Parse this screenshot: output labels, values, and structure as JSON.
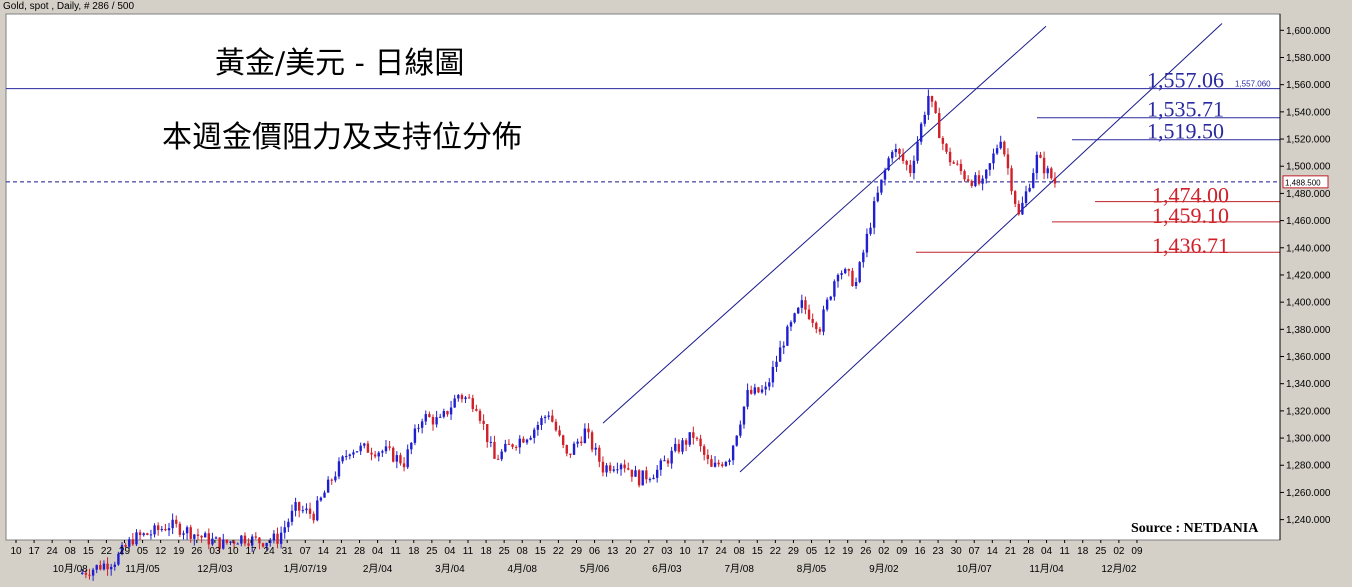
{
  "header": "Gold, spot , Daily, # 286 / 500",
  "source": "Source : NETDANIA",
  "title_lines": [
    "黃金/美元 - 日線圖",
    "本週金價阻力及支持位分佈"
  ],
  "colors": {
    "up": "#1f1fd0",
    "down": "#d0202a",
    "channel": "#1a1a8c",
    "resistance": "#2a2aa0",
    "support": "#c0202a",
    "plot_bg": "#ffffff"
  },
  "current_price_label": "1,488.500",
  "resistance_tag": "1,557.060",
  "chart_data": {
    "type": "candlestick",
    "ylim": [
      1225,
      1612
    ],
    "yticks": [
      {
        "v": 1600,
        "t": "1,600.000"
      },
      {
        "v": 1580,
        "t": "1,580.000"
      },
      {
        "v": 1560,
        "t": "1,560.000"
      },
      {
        "v": 1540,
        "t": "1,540.000"
      },
      {
        "v": 1520,
        "t": "1,520.000"
      },
      {
        "v": 1500,
        "t": "1,500.000"
      },
      {
        "v": 1480,
        "t": "1,480.000"
      },
      {
        "v": 1460,
        "t": "1,460.000"
      },
      {
        "v": 1440,
        "t": "1,440.000"
      },
      {
        "v": 1420,
        "t": "1,420.000"
      },
      {
        "v": 1400,
        "t": "1,400.000"
      },
      {
        "v": 1380,
        "t": "1,380.000"
      },
      {
        "v": 1360,
        "t": "1,360.000"
      },
      {
        "v": 1340,
        "t": "1,340.000"
      },
      {
        "v": 1320,
        "t": "1,320.000"
      },
      {
        "v": 1300,
        "t": "1,300.000"
      },
      {
        "v": 1280,
        "t": "1,280.000"
      },
      {
        "v": 1260,
        "t": "1,260.000"
      },
      {
        "v": 1240,
        "t": "1,240.000"
      }
    ],
    "x_day_labels": [
      "10",
      "17",
      "24",
      "08",
      "15",
      "22",
      "29",
      "05",
      "12",
      "19",
      "26",
      "03",
      "10",
      "17",
      "24",
      "31",
      "07",
      "14",
      "21",
      "28",
      "04",
      "11",
      "18",
      "25",
      "04",
      "11",
      "18",
      "25",
      "08",
      "15",
      "22",
      "29",
      "06",
      "13",
      "20",
      "27",
      "03",
      "10",
      "17",
      "24",
      "08",
      "15",
      "22",
      "29",
      "05",
      "12",
      "19",
      "26",
      "02",
      "09",
      "16",
      "23",
      "30",
      "07",
      "14",
      "21",
      "28",
      "04",
      "11",
      "18",
      "25",
      "02",
      "09"
    ],
    "x_month_labels": [
      {
        "i": 3,
        "t": "10月/08"
      },
      {
        "i": 7,
        "t": "11月/05"
      },
      {
        "i": 11,
        "t": "12月/03"
      },
      {
        "i": 16,
        "t": "1月/07/19"
      },
      {
        "i": 20,
        "t": "2月/04"
      },
      {
        "i": 24,
        "t": "3月/04"
      },
      {
        "i": 28,
        "t": "4月/08"
      },
      {
        "i": 32,
        "t": "5月/06"
      },
      {
        "i": 36,
        "t": "6月/03"
      },
      {
        "i": 40,
        "t": "7月/08"
      },
      {
        "i": 44,
        "t": "8月/05"
      },
      {
        "i": 48,
        "t": "9月/02"
      },
      {
        "i": 53,
        "t": "10月/07"
      },
      {
        "i": 57,
        "t": "11月/04"
      },
      {
        "i": 61,
        "t": "12月/02"
      }
    ],
    "weekly_closes": [
      1200,
      1205,
      1210,
      1226,
      1230,
      1236,
      1232,
      1226,
      1222,
      1227,
      1224,
      1226,
      1248,
      1244,
      1270,
      1292,
      1292,
      1290,
      1282,
      1316,
      1312,
      1332,
      1325,
      1284,
      1296,
      1304,
      1319,
      1286,
      1305,
      1278,
      1283,
      1270,
      1276,
      1291,
      1302,
      1277,
      1287,
      1332,
      1335,
      1372,
      1398,
      1382,
      1425,
      1414,
      1470,
      1514,
      1497,
      1552,
      1508,
      1493,
      1486,
      1522,
      1463,
      1506,
      1488
    ],
    "levels": [
      {
        "value": 1557.06,
        "label": "1,557.06",
        "kind": "resistance"
      },
      {
        "value": 1535.71,
        "label": "1,535.71",
        "kind": "resistance"
      },
      {
        "value": 1519.5,
        "label": "1,519.50",
        "kind": "resistance"
      },
      {
        "value": 1474.0,
        "label": "1,474.00",
        "kind": "support"
      },
      {
        "value": 1459.1,
        "label": "1,459.10",
        "kind": "support"
      },
      {
        "value": 1436.71,
        "label": "1,436.71",
        "kind": "support"
      }
    ],
    "current_price": 1488.5
  }
}
